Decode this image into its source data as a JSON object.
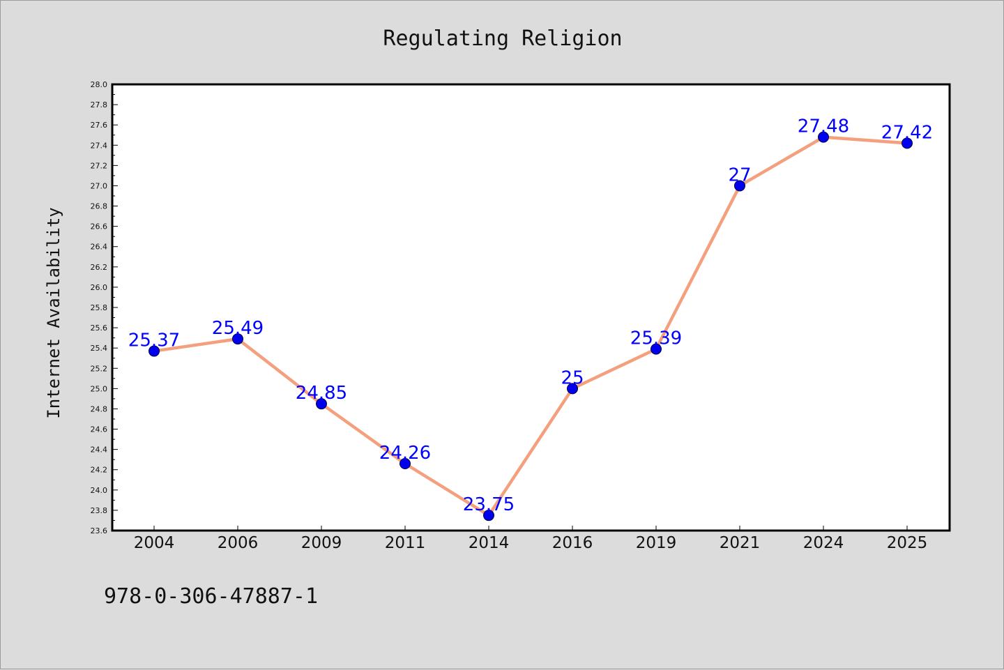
{
  "chart_data": {
    "type": "line",
    "title": "Regulating Religion",
    "xlabel": "",
    "ylabel": "Internet Availability",
    "categories": [
      "2004",
      "2006",
      "2009",
      "2011",
      "2014",
      "2016",
      "2019",
      "2021",
      "2024",
      "2025"
    ],
    "series": [
      {
        "values": [
          25.37,
          25.49,
          24.85,
          24.26,
          23.75,
          25.0,
          25.39,
          27.0,
          27.48,
          27.42
        ],
        "data_labels": [
          "25.37",
          "25.49",
          "24.85",
          "24.26",
          "23.75",
          "25",
          "25.39",
          "27",
          "27.48",
          "27.42"
        ],
        "line_color": "#f4a07f",
        "marker_color": "#0000ee"
      }
    ],
    "ylim": [
      23.6,
      28.0
    ],
    "yticks": [
      "23.6",
      "23.8",
      "24.0",
      "24.2",
      "24.4",
      "24.6",
      "24.8",
      "25.0",
      "25.2",
      "25.4",
      "25.6",
      "25.8",
      "26.0",
      "26.2",
      "26.4",
      "26.6",
      "26.8",
      "27.0",
      "27.2",
      "27.4",
      "27.6",
      "27.8",
      "28.0"
    ],
    "grid": false,
    "legend": "none",
    "label_color": "#0000ff"
  },
  "footer": {
    "isbn": "978-0-306-47887-1"
  }
}
